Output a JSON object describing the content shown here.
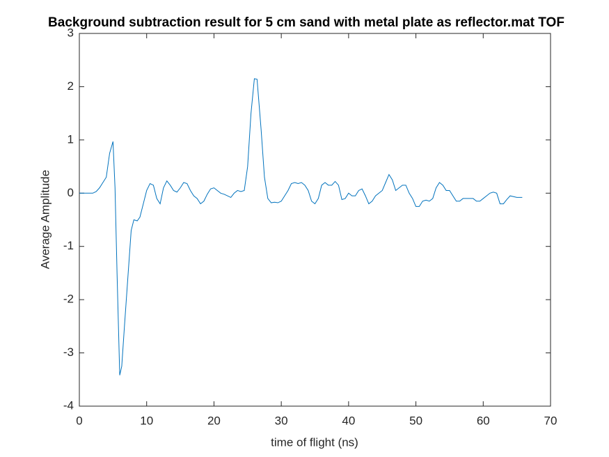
{
  "chart_data": {
    "type": "line",
    "title": "Background subtraction result for 5 cm sand with metal plate as reflector.mat TOF",
    "xlabel": "time of flight (ns)",
    "ylabel": "Average Amplitude",
    "xlim": [
      0,
      70
    ],
    "xticks": [
      0,
      10,
      20,
      30,
      40,
      50,
      60,
      70
    ],
    "ylim": [
      -4,
      3
    ],
    "yticks": [
      -4,
      -3,
      -2,
      -1,
      0,
      1,
      2,
      3
    ],
    "grid": false,
    "box": true,
    "series": [
      {
        "color": "#0072bd",
        "x": [
          0,
          1,
          2,
          2.5,
          3,
          3.5,
          4,
          4.5,
          5,
          5.3,
          5.6,
          6,
          6.3,
          6.7,
          7.2,
          7.7,
          8.1,
          8.6,
          9,
          9.5,
          10,
          10.5,
          11,
          11.5,
          12,
          12.5,
          13,
          13.5,
          14,
          14.5,
          15,
          15.5,
          16,
          16.5,
          17,
          17.5,
          18,
          18.5,
          19,
          19.5,
          20,
          20.5,
          21,
          21.5,
          22,
          22.5,
          23,
          23.5,
          24,
          24.5,
          25,
          25.5,
          26,
          26.4,
          27,
          27.5,
          28,
          28.5,
          29,
          29.5,
          30,
          30.5,
          31,
          31.5,
          32,
          32.5,
          33,
          33.5,
          34,
          34.5,
          35,
          35.5,
          36,
          36.5,
          37,
          37.5,
          38,
          38.5,
          39,
          39.5,
          40,
          40.5,
          41,
          41.5,
          42,
          42.5,
          43,
          43.5,
          44,
          44.5,
          45,
          45.5,
          46,
          46.5,
          47,
          47.5,
          48,
          48.5,
          49,
          49.5,
          50,
          50.5,
          51,
          51.5,
          52,
          52.5,
          53,
          53.5,
          54,
          54.5,
          55,
          55.5,
          56,
          56.5,
          57,
          57.5,
          58,
          58.5,
          59,
          59.5,
          60,
          60.5,
          61,
          61.5,
          62,
          62.5,
          63,
          63.5,
          64,
          65,
          65.8
        ],
        "values": [
          0,
          0,
          0,
          0.03,
          0.1,
          0.2,
          0.3,
          0.75,
          0.97,
          0.1,
          -1.5,
          -3.42,
          -3.25,
          -2.5,
          -1.6,
          -0.7,
          -0.5,
          -0.52,
          -0.45,
          -0.2,
          0.05,
          0.18,
          0.15,
          -0.1,
          -0.2,
          0.1,
          0.23,
          0.15,
          0.05,
          0.02,
          0.1,
          0.2,
          0.18,
          0.05,
          -0.05,
          -0.1,
          -0.2,
          -0.15,
          -0.02,
          0.08,
          0.1,
          0.05,
          0,
          -0.02,
          -0.05,
          -0.08,
          0,
          0.05,
          0.03,
          0.05,
          0.5,
          1.5,
          2.15,
          2.14,
          1.2,
          0.3,
          -0.1,
          -0.18,
          -0.17,
          -0.18,
          -0.15,
          -0.05,
          0.05,
          0.18,
          0.2,
          0.18,
          0.2,
          0.15,
          0.05,
          -0.15,
          -0.2,
          -0.1,
          0.15,
          0.2,
          0.15,
          0.15,
          0.22,
          0.15,
          -0.12,
          -0.1,
          0,
          -0.05,
          -0.05,
          0.05,
          0.08,
          -0.05,
          -0.2,
          -0.15,
          -0.05,
          0,
          0.05,
          0.2,
          0.35,
          0.25,
          0.05,
          0.1,
          0.15,
          0.15,
          0,
          -0.1,
          -0.25,
          -0.25,
          -0.15,
          -0.13,
          -0.15,
          -0.1,
          0.1,
          0.2,
          0.15,
          0.05,
          0.05,
          -0.05,
          -0.15,
          -0.15,
          -0.1,
          -0.1,
          -0.1,
          -0.1,
          -0.15,
          -0.15,
          -0.1,
          -0.05,
          0,
          0.02,
          0,
          -0.2,
          -0.2,
          -0.12,
          -0.05,
          -0.08,
          -0.08
        ]
      }
    ]
  }
}
